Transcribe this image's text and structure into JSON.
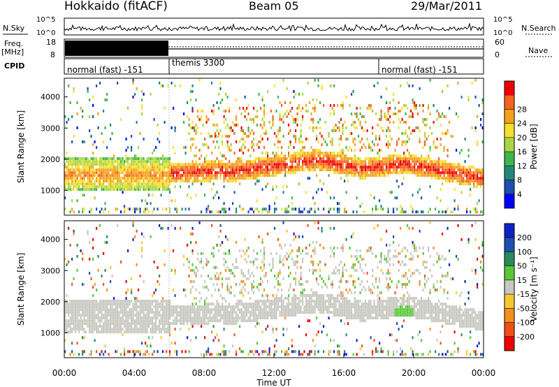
{
  "header": {
    "station": "Hokkaido (fitACF)",
    "beam": "Beam 05",
    "date": "29/Mar/2011"
  },
  "left_labels": {
    "nsky": "N.Sky",
    "freq": "Freq.",
    "freq_unit": "[MHz]",
    "cpid": "CPID"
  },
  "right_labels": {
    "nsearch": "N.Search",
    "nave": "Nave"
  },
  "nsky_axis": {
    "top": "10^5",
    "bottom": "10^0"
  },
  "freq_axis": {
    "left_top": "18",
    "left_bottom": "8",
    "right_top": "60",
    "right_bottom": "0"
  },
  "cpid_segments": [
    {
      "label": "normal (fast) -151",
      "start_h": 0,
      "end_h": 6
    },
    {
      "label": "themis 3300",
      "start_h": 6,
      "end_h": 18
    },
    {
      "label": "normal (fast) -151",
      "start_h": 18,
      "end_h": 24
    }
  ],
  "chart_data": [
    {
      "type": "heatmap",
      "quantity": "power",
      "ylabel": "Slant Range [km]",
      "yticks": [
        "1000",
        "2000",
        "3000",
        "4000"
      ],
      "ylim": [
        200,
        4600
      ],
      "xlim": [
        0,
        24
      ],
      "colorbar": {
        "title": "Power [dB]",
        "ticks": [
          "4",
          "8",
          "12",
          "16",
          "20",
          "24",
          "28"
        ],
        "colors": [
          "#0000ff",
          "#1b4fb0",
          "#22897a",
          "#3cb54a",
          "#a9d640",
          "#f5e12c",
          "#f6a11c",
          "#f4631f",
          "#ef0000"
        ]
      }
    },
    {
      "type": "heatmap",
      "quantity": "velocity",
      "ylabel": "Slant Range [km]",
      "yticks": [
        "1000",
        "2000",
        "3000",
        "4000"
      ],
      "ylim": [
        200,
        4600
      ],
      "xlim": [
        0,
        24
      ],
      "xlabel": "Time UT",
      "xticks": [
        "00:00",
        "04:00",
        "08:00",
        "12:00",
        "16:00",
        "20:00",
        "00:00"
      ],
      "colorbar": {
        "title": "Velocity [m s⁻¹]",
        "ticks": [
          "200",
          "100",
          "50",
          "15",
          "-15",
          "-50",
          "-100",
          "-200"
        ],
        "colors": [
          "#1020c8",
          "#1e50b0",
          "#2a8a5a",
          "#58c83a",
          "#c8c8c0",
          "#f6c830",
          "#f49020",
          "#f05018",
          "#ee0000"
        ]
      }
    }
  ]
}
